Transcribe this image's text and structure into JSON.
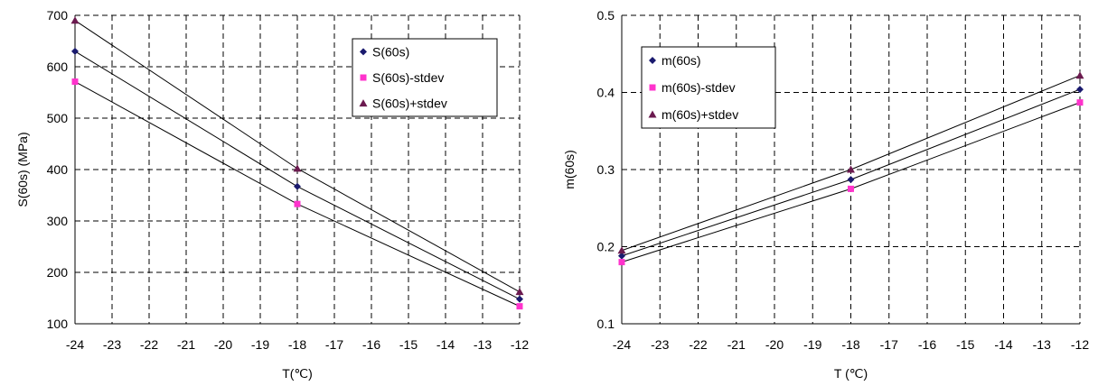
{
  "chart_data": [
    {
      "type": "line",
      "title": "",
      "xlabel": "T(℃)",
      "ylabel": "S(60s) (MPa)",
      "xlim": [
        -24,
        -12
      ],
      "ylim": [
        100,
        700
      ],
      "xticks": [
        "-24",
        "-23",
        "-22",
        "-21",
        "-20",
        "-19",
        "-18",
        "-17",
        "-16",
        "-15",
        "-14",
        "-13",
        "-12"
      ],
      "yticks": [
        "100",
        "200",
        "300",
        "400",
        "500",
        "600",
        "700"
      ],
      "x": [
        -24,
        -18,
        -12
      ],
      "grid": true,
      "legend_position": "top-right",
      "series": [
        {
          "name": "S(60s)",
          "values": [
            630,
            367,
            148
          ],
          "marker": "diamond",
          "color": "#1a1a6e"
        },
        {
          "name": "S(60s)-stdev",
          "values": [
            571,
            333,
            134
          ],
          "marker": "square",
          "color": "#ff33cc"
        },
        {
          "name": "S(60s)+stdev",
          "values": [
            690,
            402,
            162
          ],
          "marker": "triangle",
          "color": "#6b1a4f"
        }
      ]
    },
    {
      "type": "line",
      "title": "",
      "xlabel": "T (℃)",
      "ylabel": "m(60s)",
      "xlim": [
        -24,
        -12
      ],
      "ylim": [
        0.1,
        0.5
      ],
      "xticks": [
        "-24",
        "-23",
        "-22",
        "-21",
        "-20",
        "-19",
        "-18",
        "-17",
        "-16",
        "-15",
        "-14",
        "-13",
        "-12"
      ],
      "yticks": [
        "0.1",
        "0.2",
        "0.3",
        "0.4",
        "0.5"
      ],
      "x": [
        -24,
        -18,
        -12
      ],
      "grid": true,
      "legend_position": "top-left",
      "series": [
        {
          "name": "m(60s)",
          "values": [
            0.188,
            0.287,
            0.404
          ],
          "marker": "diamond",
          "color": "#1a1a6e"
        },
        {
          "name": "m(60s)-stdev",
          "values": [
            0.18,
            0.275,
            0.387
          ],
          "marker": "square",
          "color": "#ff33cc"
        },
        {
          "name": "m(60s)+stdev",
          "values": [
            0.195,
            0.3,
            0.422
          ],
          "marker": "triangle",
          "color": "#6b1a4f"
        }
      ]
    }
  ]
}
